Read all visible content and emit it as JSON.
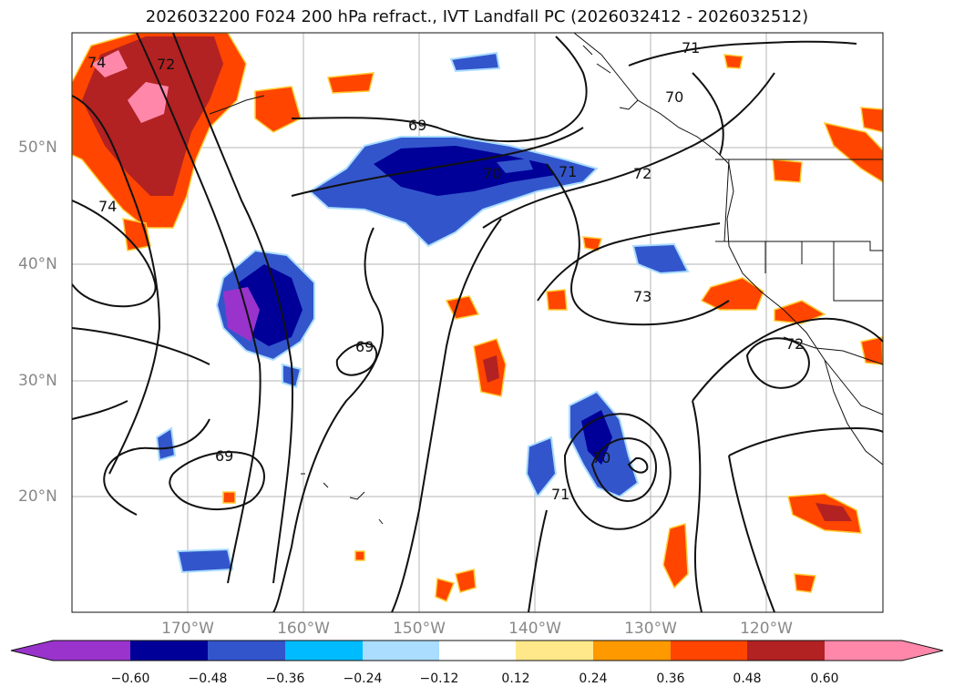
{
  "title": "2026032200 F024 200 hPa refract., IVT Landfall PC (2026032412 - 2026032512)",
  "map": {
    "lon_ticks": [
      "170°W",
      "160°W",
      "150°W",
      "140°W",
      "130°W",
      "120°W"
    ],
    "lat_ticks": [
      "50°N",
      "40°N",
      "30°N",
      "20°N"
    ],
    "contour_labels": [
      "74",
      "72",
      "74",
      "69",
      "70",
      "71",
      "72",
      "71",
      "70",
      "73",
      "69",
      "69",
      "72",
      "71",
      "70"
    ]
  },
  "colorbar": {
    "ticks": [
      "−0.60",
      "−0.48",
      "−0.36",
      "−0.24",
      "−0.12",
      "0.12",
      "0.24",
      "0.36",
      "0.48",
      "0.60"
    ],
    "colors": [
      "#9933cc",
      "#000099",
      "#3355cc",
      "#00bbff",
      "#aaddff",
      "#ffffff",
      "#ffe88a",
      "#ff9900",
      "#ff4500",
      "#b22222",
      "#ff88aa"
    ]
  }
}
